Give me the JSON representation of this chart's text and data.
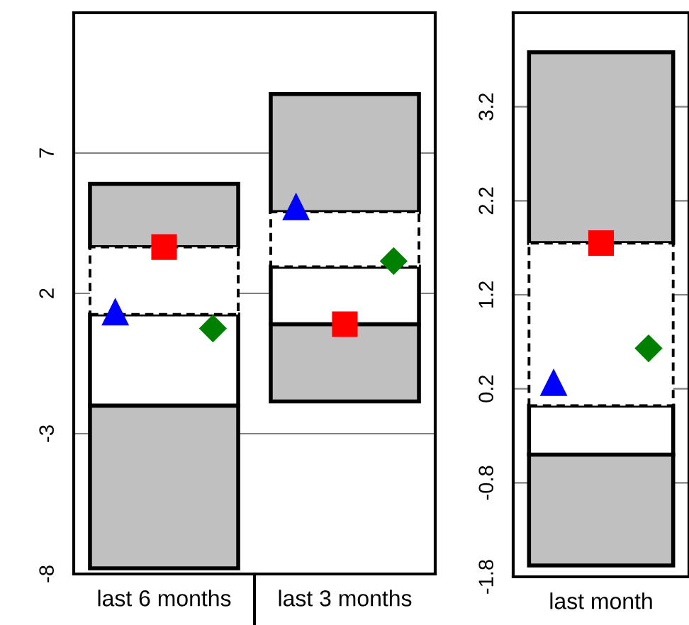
{
  "chart_data": [
    {
      "type": "bar",
      "categories": [
        "last 6 months",
        "last 3 months"
      ],
      "ylim": [
        -8,
        12
      ],
      "yticks": [
        -8,
        -3,
        2,
        7
      ],
      "grid": "y",
      "series": [
        {
          "color": "#c0c0c0",
          "base": [
            -7.8,
            -1.85
          ],
          "values": [
            5.8,
            2.75
          ]
        },
        {
          "color": "#ffffff",
          "base": [
            -2.0,
            0.9
          ],
          "values": [
            3.25,
            2.05
          ]
        },
        {
          "color": "#ffffff",
          "base": [
            1.25,
            2.95
          ],
          "values": [
            2.4,
            1.95
          ],
          "line_style": "dashed"
        },
        {
          "color": "#c0c0c0",
          "base": [
            3.65,
            4.9
          ],
          "values": [
            2.25,
            4.2
          ]
        },
        {
          "type": "scatter",
          "marker": "triangle",
          "color": "#0000ff",
          "x": [
            "last 6 months",
            "last 3 months"
          ],
          "values": [
            1.35,
            5.1
          ]
        },
        {
          "type": "scatter",
          "marker": "square",
          "color": "#ff0000",
          "x": [
            "last 6 months",
            "last 3 months"
          ],
          "values": [
            3.65,
            0.9
          ]
        },
        {
          "type": "scatter",
          "marker": "diamond",
          "color": "#008000",
          "x": [
            "last 6 months",
            "last 3 months"
          ],
          "values": [
            0.75,
            3.15
          ]
        }
      ]
    },
    {
      "type": "bar",
      "categories": [
        "last month"
      ],
      "ylim": [
        -1.8,
        4.2
      ],
      "yticks": [
        -1.8,
        -0.8,
        0.2,
        1.2,
        2.2,
        3.2
      ],
      "grid": "y",
      "series": [
        {
          "color": "#c0c0c0",
          "base": [
            -1.68
          ],
          "values": [
            1.18
          ]
        },
        {
          "color": "#ffffff",
          "base": [
            -0.5
          ],
          "values": [
            0.52
          ]
        },
        {
          "color": "#ffffff",
          "base": [
            0.02
          ],
          "values": [
            1.73
          ],
          "line_style": "dashed"
        },
        {
          "color": "#c0c0c0",
          "base": [
            1.75
          ],
          "values": [
            2.03
          ]
        },
        {
          "type": "scatter",
          "marker": "triangle",
          "color": "#0000ff",
          "x": [
            "last month"
          ],
          "values": [
            0.27
          ]
        },
        {
          "type": "scatter",
          "marker": "square",
          "color": "#ff0000",
          "x": [
            "last month"
          ],
          "values": [
            1.75
          ]
        },
        {
          "type": "scatter",
          "marker": "diamond",
          "color": "#008000",
          "x": [
            "last month"
          ],
          "values": [
            0.63
          ]
        }
      ]
    }
  ]
}
